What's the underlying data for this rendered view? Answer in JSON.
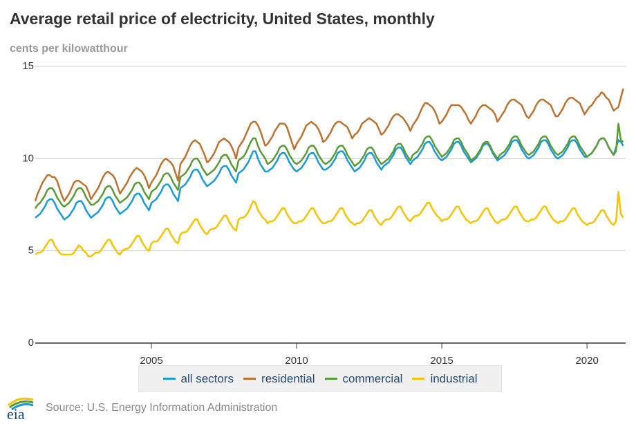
{
  "chart_data": {
    "type": "line",
    "title": "Average retail price of electricity, United States, monthly",
    "ylabel": "cents per kilowatthour",
    "xlabel": "",
    "x_start": "Jan 2001",
    "frequency": "monthly",
    "x_ticks": [
      "2005",
      "2010",
      "2015",
      "2020"
    ],
    "y_ticks": [
      "0",
      "5",
      "10",
      "15"
    ],
    "xlim": [
      2001,
      2021.33
    ],
    "ylim": [
      0,
      15
    ],
    "grid": "horizontal",
    "legend": "bottom",
    "series": [
      {
        "name": "all sectors",
        "color": "#1a9ad6",
        "values": [
          6.8,
          6.9,
          7.0,
          7.2,
          7.4,
          7.7,
          7.8,
          7.8,
          7.6,
          7.3,
          7.1,
          6.9,
          6.7,
          6.8,
          6.9,
          7.1,
          7.3,
          7.6,
          7.7,
          7.7,
          7.5,
          7.2,
          7.0,
          6.8,
          6.9,
          7.0,
          7.1,
          7.3,
          7.5,
          7.8,
          7.9,
          7.9,
          7.7,
          7.4,
          7.2,
          7.0,
          7.1,
          7.2,
          7.3,
          7.5,
          7.7,
          8.0,
          8.1,
          8.1,
          7.9,
          7.6,
          7.4,
          7.2,
          7.6,
          7.7,
          7.8,
          8.0,
          8.2,
          8.5,
          8.6,
          8.6,
          8.4,
          8.1,
          7.9,
          7.7,
          8.4,
          8.5,
          8.6,
          8.8,
          9.0,
          9.3,
          9.4,
          9.4,
          9.2,
          8.9,
          8.7,
          8.5,
          8.6,
          8.7,
          8.8,
          9.0,
          9.2,
          9.5,
          9.6,
          9.6,
          9.4,
          9.1,
          8.9,
          8.7,
          9.2,
          9.3,
          9.4,
          9.6,
          9.8,
          10.1,
          10.4,
          10.4,
          10.0,
          9.7,
          9.5,
          9.3,
          9.3,
          9.4,
          9.5,
          9.7,
          9.9,
          10.2,
          10.3,
          10.3,
          10.1,
          9.8,
          9.6,
          9.4,
          9.3,
          9.4,
          9.5,
          9.7,
          9.9,
          10.2,
          10.3,
          10.3,
          10.1,
          9.8,
          9.6,
          9.4,
          9.4,
          9.5,
          9.6,
          9.8,
          10.0,
          10.3,
          10.4,
          10.4,
          10.2,
          9.9,
          9.7,
          9.5,
          9.3,
          9.4,
          9.5,
          9.7,
          9.9,
          10.2,
          10.3,
          10.3,
          10.1,
          9.8,
          9.6,
          9.4,
          9.6,
          9.7,
          9.8,
          10.0,
          10.2,
          10.5,
          10.6,
          10.6,
          10.4,
          10.1,
          9.9,
          9.7,
          9.9,
          10.0,
          10.1,
          10.3,
          10.5,
          10.8,
          10.9,
          10.9,
          10.7,
          10.4,
          10.2,
          10.0,
          9.9,
          10.0,
          10.1,
          10.3,
          10.5,
          10.8,
          10.9,
          10.9,
          10.7,
          10.4,
          10.2,
          10.0,
          9.8,
          9.9,
          10.0,
          10.2,
          10.4,
          10.7,
          10.8,
          10.8,
          10.6,
          10.3,
          10.1,
          9.9,
          10.0,
          10.1,
          10.2,
          10.4,
          10.6,
          10.9,
          11.0,
          11.0,
          10.8,
          10.5,
          10.3,
          10.1,
          10.0,
          10.1,
          10.2,
          10.4,
          10.6,
          10.9,
          11.0,
          11.0,
          10.8,
          10.5,
          10.3,
          10.1,
          10.0,
          10.1,
          10.2,
          10.4,
          10.6,
          10.9,
          11.0,
          11.0,
          10.8,
          10.5,
          10.3,
          10.1,
          10.1,
          10.2,
          10.3,
          10.5,
          10.7,
          11.0,
          11.1,
          11.1,
          10.9,
          10.6,
          10.4,
          10.2,
          10.6,
          11.0,
          10.9,
          10.7
        ]
      },
      {
        "name": "residential",
        "color": "#bb7331",
        "values": [
          7.7,
          8.1,
          8.4,
          8.7,
          8.9,
          9.1,
          9.1,
          9.0,
          9.0,
          8.8,
          8.4,
          8.0,
          7.7,
          7.9,
          8.1,
          8.4,
          8.7,
          8.8,
          8.8,
          8.7,
          8.6,
          8.5,
          8.2,
          7.8,
          8.0,
          8.2,
          8.4,
          8.7,
          9.0,
          9.2,
          9.3,
          9.2,
          9.1,
          8.9,
          8.5,
          8.1,
          8.3,
          8.5,
          8.7,
          9.0,
          9.2,
          9.4,
          9.5,
          9.4,
          9.3,
          9.1,
          8.8,
          8.4,
          8.7,
          8.9,
          9.1,
          9.4,
          9.7,
          9.9,
          10.0,
          9.9,
          9.8,
          9.6,
          9.2,
          8.8,
          9.7,
          9.9,
          10.1,
          10.4,
          10.7,
          10.9,
          11.0,
          10.9,
          10.8,
          10.5,
          10.2,
          9.8,
          9.9,
          10.1,
          10.3,
          10.6,
          10.9,
          11.0,
          11.1,
          11.0,
          10.9,
          10.7,
          10.4,
          10.0,
          10.6,
          10.8,
          11.0,
          11.3,
          11.6,
          11.9,
          12.0,
          12.0,
          11.8,
          11.5,
          11.1,
          10.7,
          10.8,
          11.0,
          11.2,
          11.5,
          11.7,
          11.9,
          11.9,
          11.9,
          11.7,
          11.3,
          10.9,
          10.5,
          10.8,
          11.0,
          11.2,
          11.5,
          11.8,
          11.9,
          12.0,
          11.9,
          11.8,
          11.6,
          11.3,
          10.9,
          11.0,
          11.2,
          11.4,
          11.7,
          11.9,
          12.0,
          12.0,
          11.9,
          11.8,
          11.7,
          11.4,
          11.1,
          11.3,
          11.4,
          11.6,
          11.9,
          12.0,
          12.1,
          12.2,
          12.1,
          12.0,
          11.9,
          11.6,
          11.3,
          11.4,
          11.6,
          11.8,
          12.1,
          12.3,
          12.4,
          12.4,
          12.3,
          12.2,
          12.0,
          11.8,
          11.5,
          11.8,
          12.0,
          12.2,
          12.5,
          12.8,
          13.0,
          13.0,
          12.9,
          12.8,
          12.6,
          12.3,
          11.9,
          12.0,
          12.2,
          12.4,
          12.7,
          12.9,
          12.9,
          12.9,
          12.9,
          12.8,
          12.6,
          12.4,
          12.1,
          11.9,
          12.1,
          12.3,
          12.6,
          12.8,
          12.9,
          12.9,
          12.8,
          12.7,
          12.6,
          12.4,
          12.0,
          12.2,
          12.4,
          12.6,
          12.9,
          13.1,
          13.2,
          13.2,
          13.1,
          13.0,
          12.9,
          12.6,
          12.3,
          12.2,
          12.4,
          12.6,
          12.9,
          13.1,
          13.2,
          13.2,
          13.1,
          13.0,
          12.9,
          12.6,
          12.3,
          12.3,
          12.5,
          12.7,
          13.0,
          13.2,
          13.3,
          13.3,
          13.2,
          13.1,
          13.0,
          12.7,
          12.4,
          12.6,
          12.8,
          12.9,
          13.1,
          13.3,
          13.4,
          13.6,
          13.5,
          13.3,
          13.2,
          12.9,
          12.6,
          12.7,
          12.8,
          13.3,
          13.8
        ]
      },
      {
        "name": "commercial",
        "color": "#5b9a37",
        "values": [
          7.3,
          7.5,
          7.6,
          7.8,
          8.0,
          8.3,
          8.4,
          8.4,
          8.2,
          7.9,
          7.7,
          7.5,
          7.4,
          7.5,
          7.6,
          7.8,
          8.0,
          8.3,
          8.4,
          8.4,
          8.2,
          7.9,
          7.7,
          7.5,
          7.5,
          7.6,
          7.7,
          7.9,
          8.1,
          8.4,
          8.5,
          8.5,
          8.3,
          8.0,
          7.8,
          7.6,
          7.7,
          7.8,
          7.9,
          8.1,
          8.3,
          8.6,
          8.7,
          8.7,
          8.5,
          8.2,
          8.0,
          7.8,
          8.2,
          8.3,
          8.4,
          8.6,
          8.8,
          9.1,
          9.2,
          9.2,
          9.0,
          8.7,
          8.5,
          8.3,
          9.0,
          9.1,
          9.2,
          9.4,
          9.6,
          9.9,
          10.0,
          10.0,
          9.8,
          9.5,
          9.3,
          9.1,
          9.2,
          9.3,
          9.4,
          9.6,
          9.8,
          10.1,
          10.2,
          10.2,
          10.0,
          9.7,
          9.5,
          9.3,
          9.9,
          10.0,
          10.1,
          10.3,
          10.6,
          10.9,
          11.1,
          11.1,
          10.7,
          10.4,
          10.2,
          10.0,
          9.7,
          9.8,
          9.9,
          10.1,
          10.3,
          10.6,
          10.7,
          10.7,
          10.5,
          10.2,
          10.0,
          9.8,
          9.7,
          9.8,
          9.9,
          10.1,
          10.3,
          10.6,
          10.7,
          10.7,
          10.5,
          10.2,
          10.0,
          9.8,
          9.7,
          9.8,
          9.9,
          10.1,
          10.3,
          10.6,
          10.7,
          10.7,
          10.5,
          10.2,
          10.0,
          9.8,
          9.6,
          9.7,
          9.8,
          10.0,
          10.2,
          10.5,
          10.6,
          10.6,
          10.4,
          10.1,
          9.9,
          9.7,
          9.8,
          9.9,
          10.0,
          10.2,
          10.4,
          10.7,
          10.8,
          10.8,
          10.6,
          10.3,
          10.1,
          9.9,
          10.2,
          10.3,
          10.4,
          10.6,
          10.8,
          11.1,
          11.2,
          11.2,
          11.0,
          10.7,
          10.5,
          10.3,
          10.1,
          10.2,
          10.3,
          10.5,
          10.7,
          11.0,
          11.1,
          11.1,
          10.9,
          10.6,
          10.4,
          10.2,
          9.9,
          10.0,
          10.1,
          10.3,
          10.5,
          10.8,
          10.9,
          10.9,
          10.7,
          10.4,
          10.2,
          10.0,
          10.2,
          10.3,
          10.4,
          10.6,
          10.8,
          11.1,
          11.2,
          11.2,
          11.0,
          10.7,
          10.5,
          10.3,
          10.2,
          10.3,
          10.4,
          10.6,
          10.8,
          11.1,
          11.2,
          11.2,
          11.0,
          10.7,
          10.5,
          10.3,
          10.2,
          10.3,
          10.4,
          10.6,
          10.8,
          11.1,
          11.2,
          11.2,
          11.0,
          10.7,
          10.5,
          10.3,
          10.1,
          10.2,
          10.3,
          10.5,
          10.7,
          11.0,
          11.1,
          11.1,
          10.9,
          10.6,
          10.4,
          10.2,
          10.4,
          11.9,
          11.0,
          10.9
        ]
      },
      {
        "name": "industrial",
        "color": "#f5c300",
        "values": [
          4.8,
          4.9,
          4.9,
          5.0,
          5.2,
          5.4,
          5.6,
          5.6,
          5.3,
          5.1,
          4.9,
          4.8,
          4.8,
          4.8,
          4.8,
          4.8,
          4.9,
          5.1,
          5.3,
          5.2,
          5.0,
          4.9,
          4.7,
          4.7,
          4.8,
          4.9,
          4.9,
          5.0,
          5.2,
          5.4,
          5.6,
          5.6,
          5.3,
          5.1,
          4.9,
          4.8,
          5.0,
          5.1,
          5.1,
          5.2,
          5.4,
          5.6,
          5.8,
          5.8,
          5.5,
          5.3,
          5.1,
          5.0,
          5.4,
          5.5,
          5.5,
          5.6,
          5.8,
          6.0,
          6.2,
          6.2,
          5.9,
          5.7,
          5.5,
          5.4,
          5.9,
          6.0,
          6.0,
          6.1,
          6.3,
          6.5,
          6.7,
          6.7,
          6.4,
          6.2,
          6.0,
          5.9,
          6.1,
          6.2,
          6.2,
          6.3,
          6.5,
          6.7,
          6.9,
          6.9,
          6.6,
          6.4,
          6.2,
          6.1,
          6.7,
          6.8,
          6.8,
          6.9,
          7.1,
          7.4,
          7.7,
          7.6,
          7.2,
          7.0,
          6.8,
          6.7,
          6.5,
          6.6,
          6.6,
          6.7,
          6.9,
          7.1,
          7.3,
          7.3,
          7.0,
          6.8,
          6.6,
          6.5,
          6.5,
          6.6,
          6.6,
          6.7,
          6.9,
          7.1,
          7.3,
          7.3,
          7.0,
          6.8,
          6.6,
          6.5,
          6.5,
          6.6,
          6.6,
          6.7,
          6.9,
          7.1,
          7.3,
          7.3,
          7.0,
          6.8,
          6.6,
          6.5,
          6.4,
          6.5,
          6.5,
          6.6,
          6.8,
          7.0,
          7.2,
          7.2,
          6.9,
          6.7,
          6.5,
          6.4,
          6.6,
          6.7,
          6.7,
          6.8,
          7.0,
          7.2,
          7.4,
          7.4,
          7.1,
          6.9,
          6.7,
          6.6,
          6.8,
          6.9,
          6.9,
          7.0,
          7.2,
          7.4,
          7.6,
          7.6,
          7.3,
          7.1,
          6.9,
          6.8,
          6.6,
          6.7,
          6.7,
          6.8,
          7.0,
          7.2,
          7.4,
          7.4,
          7.1,
          6.9,
          6.7,
          6.6,
          6.5,
          6.6,
          6.6,
          6.7,
          6.9,
          7.1,
          7.3,
          7.3,
          7.0,
          6.8,
          6.6,
          6.5,
          6.6,
          6.7,
          6.7,
          6.8,
          7.0,
          7.2,
          7.4,
          7.4,
          7.1,
          6.9,
          6.7,
          6.6,
          6.6,
          6.7,
          6.7,
          6.8,
          7.0,
          7.2,
          7.4,
          7.4,
          7.1,
          6.9,
          6.7,
          6.6,
          6.5,
          6.6,
          6.6,
          6.7,
          6.9,
          7.1,
          7.3,
          7.3,
          7.0,
          6.8,
          6.6,
          6.5,
          6.4,
          6.5,
          6.5,
          6.6,
          6.8,
          7.0,
          7.2,
          7.2,
          6.9,
          6.7,
          6.5,
          6.4,
          6.6,
          8.2,
          7.0,
          6.8
        ]
      }
    ]
  },
  "footer": {
    "source": "Source: U.S. Energy Information Administration",
    "logo_text": "eia"
  }
}
